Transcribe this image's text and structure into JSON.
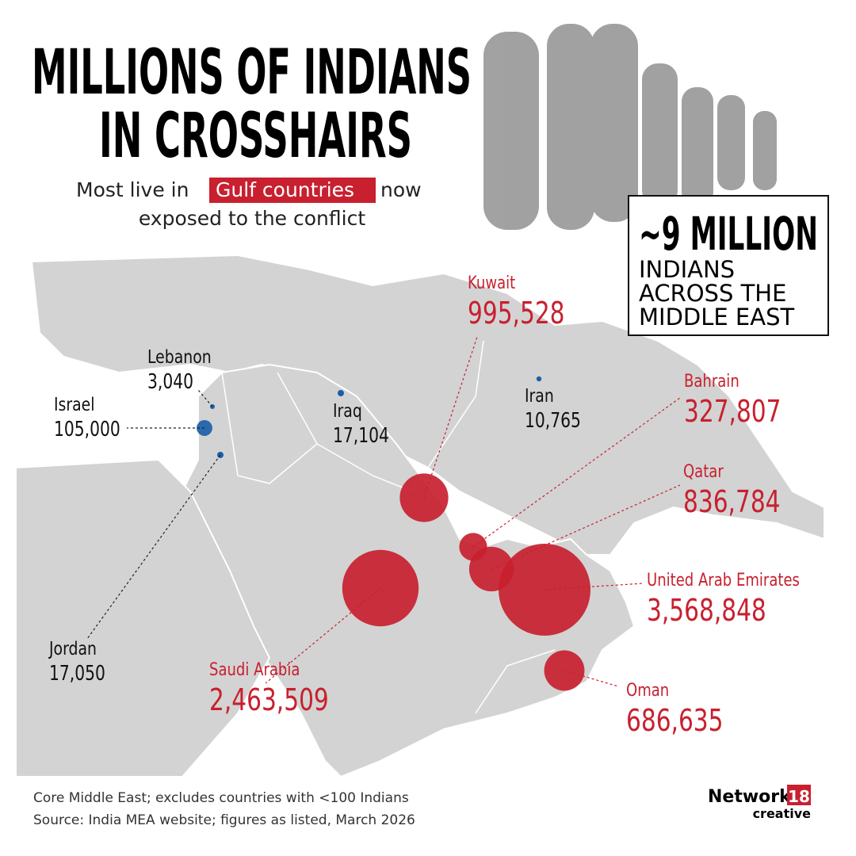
{
  "header": {
    "title_lines": [
      "MILLIONS OF INDIANS",
      "IN CROSSHAIRS"
    ],
    "subtitle": {
      "before": "Most live in",
      "highlight": "Gulf countries",
      "after": "now",
      "line2": "exposed to the conflict"
    }
  },
  "callout": {
    "headline": "~9 MILLION",
    "lines": [
      "INDIANS",
      "ACROSS THE",
      "MIDDLE EAST"
    ]
  },
  "countries": [
    {
      "name": "Kuwait",
      "value": 995528,
      "label": "995,528",
      "color": "#c8202f"
    },
    {
      "name": "Bahrain",
      "value": 327807,
      "label": "327,807",
      "color": "#c8202f"
    },
    {
      "name": "Qatar",
      "value": 836784,
      "label": "836,784",
      "color": "#c8202f"
    },
    {
      "name": "United Arab Emirates",
      "value": 3568848,
      "label": "3,568,848",
      "color": "#c8202f"
    },
    {
      "name": "Oman",
      "value": 686635,
      "label": "686,635",
      "color": "#c8202f"
    },
    {
      "name": "Saudi Arabia",
      "value": 2463509,
      "label": "2,463,509",
      "color": "#c8202f"
    },
    {
      "name": "Lebanon",
      "value": 3040,
      "label": "3,040",
      "color": "#1a5fa8"
    },
    {
      "name": "Israel",
      "value": 105000,
      "label": "105,000",
      "color": "#1a5fa8"
    },
    {
      "name": "Iraq",
      "value": 17104,
      "label": "17,104",
      "color": "#1a5fa8"
    },
    {
      "name": "Iran",
      "value": 10765,
      "label": "10,765",
      "color": "#1a5fa8"
    },
    {
      "name": "Jordan",
      "value": 17050,
      "label": "17,050",
      "color": "#1a5fa8"
    }
  ],
  "footer": {
    "notes": [
      "Core Middle East; excludes countries with <100 Indians",
      "Source: India MEA website; figures as listed, March 2026"
    ],
    "brand": "Network",
    "brand_number": "18",
    "brand_sub": "creative"
  }
}
